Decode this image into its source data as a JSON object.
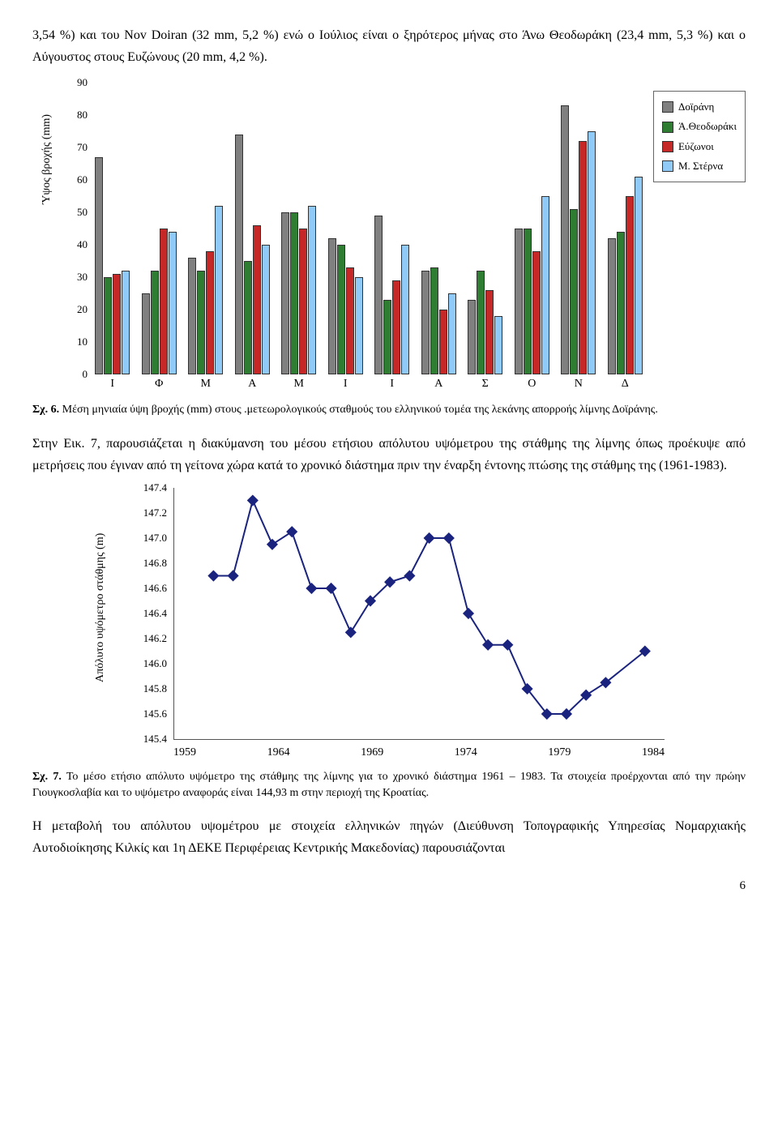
{
  "intro_para": "3,54 %) και του Nov Doiran (32 mm, 5,2 %) ενώ ο Ιούλιος είναι ο ξηρότερος μήνας στο Άνω Θεοδωράκη (23,4 mm, 5,3 %) και ο Αύγουστος στους Ευζώνους (20 mm, 4,2 %).",
  "bar_chart": {
    "y_label": "Ύψος βροχής (mm)",
    "ylim": [
      0,
      90
    ],
    "ytick_step": 10,
    "categories": [
      "Ι",
      "Φ",
      "Μ",
      "Α",
      "Μ",
      "Ι",
      "Ι",
      "Α",
      "Σ",
      "Ο",
      "Ν",
      "Δ"
    ],
    "series": [
      {
        "name": "Δοϊράνη",
        "color": "#808080",
        "values": [
          67,
          25,
          36,
          74,
          50,
          42,
          49,
          32,
          23,
          45,
          83,
          42
        ]
      },
      {
        "name": "Ά.Θεοδωράκι",
        "color": "#2e7d32",
        "values": [
          30,
          32,
          32,
          35,
          50,
          40,
          23,
          33,
          32,
          45,
          51,
          44
        ]
      },
      {
        "name": "Εύζωνοι",
        "color": "#c62828",
        "values": [
          31,
          45,
          38,
          46,
          45,
          33,
          29,
          20,
          26,
          38,
          72,
          55
        ]
      },
      {
        "name": "Μ. Στέρνα",
        "color": "#90caf9",
        "values": [
          32,
          44,
          52,
          40,
          52,
          30,
          40,
          25,
          18,
          55,
          75,
          61
        ]
      }
    ]
  },
  "caption1_label": "Σχ. 6.",
  "caption1_text": " Μέση μηνιαία ύψη βροχής (mm) στους .μετεωρολογικούς σταθμούς του ελληνικού τομέα της λεκάνης απορροής λίμνης Δοϊράνης.",
  "mid_para": "Στην Εικ. 7, παρουσιάζεται η διακύμανση του μέσου ετήσιου απόλυτου υψόμετρου της στάθμης της λίμνης όπως προέκυψε από μετρήσεις που έγιναν από τη γείτονα χώρα κατά το χρονικό διάστημα πριν την έναρξη έντονης πτώσης της στάθμης της (1961-1983).",
  "line_chart": {
    "y_label": "Απόλυτο υψόμετρο στάθμης (m)",
    "ylim": [
      145.4,
      147.4
    ],
    "ytick_step": 0.2,
    "xlim": [
      1959,
      1984
    ],
    "xtick_step": 5,
    "line_color": "#1a237e",
    "marker_color": "#1a237e",
    "marker_size": 5,
    "points": [
      [
        1961,
        146.7
      ],
      [
        1962,
        146.7
      ],
      [
        1963,
        147.3
      ],
      [
        1964,
        146.95
      ],
      [
        1965,
        147.05
      ],
      [
        1966,
        146.6
      ],
      [
        1967,
        146.6
      ],
      [
        1968,
        146.25
      ],
      [
        1969,
        146.5
      ],
      [
        1970,
        146.65
      ],
      [
        1971,
        146.7
      ],
      [
        1972,
        147.0
      ],
      [
        1973,
        147.0
      ],
      [
        1974,
        146.4
      ],
      [
        1975,
        146.15
      ],
      [
        1976,
        146.15
      ],
      [
        1977,
        145.8
      ],
      [
        1978,
        145.6
      ],
      [
        1979,
        145.6
      ],
      [
        1980,
        145.75
      ],
      [
        1981,
        145.85
      ],
      [
        1983,
        146.1
      ]
    ]
  },
  "caption2_label": "Σχ. 7.",
  "caption2_text": " Το μέσο ετήσιο απόλυτο υψόμετρο της στάθμης της λίμνης για το χρονικό διάστημα 1961 – 1983. Τα στοιχεία προέρχονται από την πρώην Γιουγκοσλαβία και το υψόμετρο αναφοράς είναι 144,93 m στην περιοχή της Κροατίας.",
  "final_para": "Η μεταβολή του απόλυτου υψομέτρου με στοιχεία ελληνικών πηγών (Διεύθυνση Τοπογραφικής Υπηρεσίας Νομαρχιακής Αυτοδιοίκησης Κιλκίς και 1η ΔΕΚΕ Περιφέρειας Κεντρικής Μακεδονίας) παρουσιάζονται",
  "page_number": "6"
}
